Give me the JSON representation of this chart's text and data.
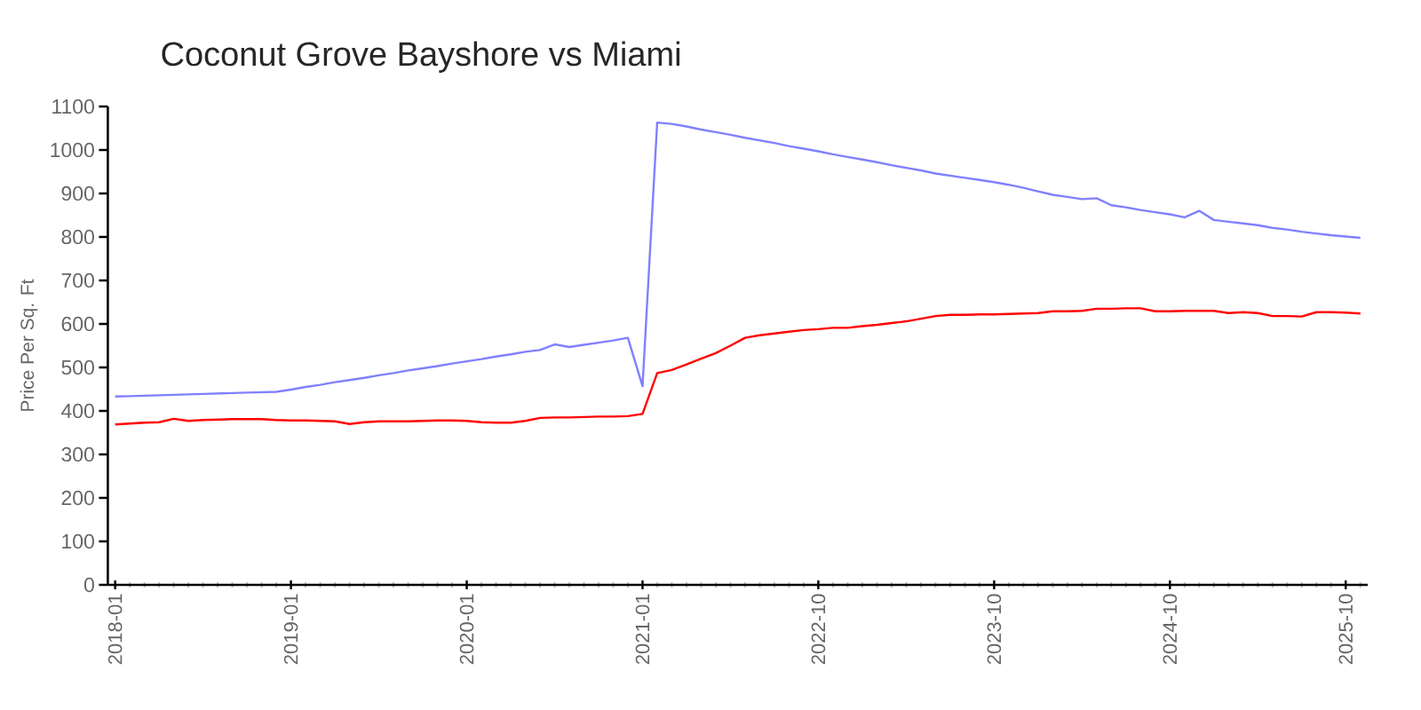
{
  "chart_data": {
    "type": "line",
    "title": "Coconut Grove Bayshore vs Miami",
    "ylabel": "Price Per Sq. Ft",
    "categories": [
      "2018-01",
      null,
      null,
      null,
      null,
      null,
      null,
      null,
      null,
      null,
      null,
      null,
      "2019-01",
      null,
      null,
      null,
      null,
      null,
      null,
      null,
      null,
      null,
      null,
      null,
      "2020-01",
      null,
      null,
      null,
      null,
      null,
      null,
      null,
      null,
      null,
      null,
      null,
      "2021-01",
      null,
      null,
      null,
      null,
      null,
      null,
      null,
      null,
      null,
      null,
      null,
      "2022-10",
      null,
      null,
      null,
      null,
      null,
      null,
      null,
      null,
      null,
      null,
      null,
      "2023-10",
      null,
      null,
      null,
      null,
      null,
      null,
      null,
      null,
      null,
      null,
      null,
      "2024-10",
      null,
      null,
      null,
      null,
      null,
      null,
      null,
      null,
      null,
      null,
      null,
      "2025-10",
      null
    ],
    "series": [
      {
        "color": "#8080ff",
        "values": [
          433,
          434,
          435,
          436,
          437,
          438,
          439,
          440,
          441,
          442,
          443,
          444,
          449,
          455,
          460,
          466,
          471,
          476,
          482,
          487,
          493,
          498,
          503,
          509,
          514,
          519,
          525,
          530,
          536,
          540,
          553,
          547,
          552,
          557,
          562,
          568,
          457,
          1063,
          1060,
          1054,
          1047,
          1041,
          1035,
          1028,
          1022,
          1016,
          1009,
          1003,
          997,
          990,
          984,
          978,
          972,
          965,
          959,
          953,
          946,
          941,
          936,
          931,
          926,
          920,
          913,
          905,
          897,
          892,
          887,
          889,
          873,
          868,
          862,
          857,
          852,
          845,
          860,
          839,
          835,
          831,
          827,
          821,
          817,
          812,
          808,
          804,
          801,
          798
        ]
      },
      {
        "color": "#ff0000",
        "values": [
          369,
          371,
          373,
          374,
          382,
          377,
          379,
          380,
          381,
          381,
          381,
          379,
          378,
          378,
          377,
          376,
          370,
          374,
          376,
          376,
          376,
          377,
          378,
          378,
          377,
          374,
          373,
          373,
          377,
          384,
          385,
          385,
          386,
          387,
          387,
          388,
          393,
          487,
          494,
          507,
          520,
          533,
          550,
          568,
          574,
          578,
          582,
          586,
          588,
          591,
          591,
          595,
          598,
          602,
          606,
          612,
          618,
          621,
          621,
          622,
          622,
          623,
          624,
          625,
          629,
          629,
          630,
          635,
          635,
          636,
          636,
          629,
          629,
          630,
          630,
          630,
          625,
          627,
          625,
          618,
          618,
          617,
          627,
          627,
          626,
          624
        ]
      }
    ],
    "ylim": [
      0,
      1100
    ],
    "yticks": [
      0,
      100,
      200,
      300,
      400,
      500,
      600,
      700,
      800,
      900,
      1000,
      1100
    ],
    "marker": "none"
  }
}
